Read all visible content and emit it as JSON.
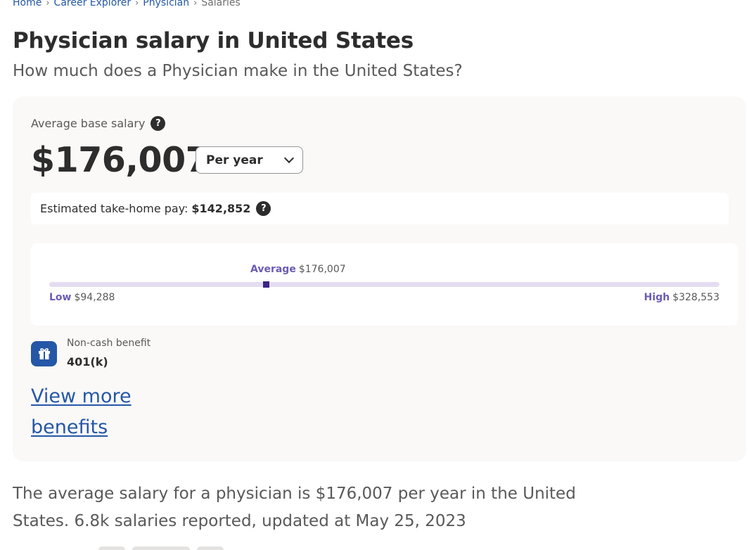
{
  "breadcrumb": {
    "home": "Home",
    "career_explorer": "Career Explorer",
    "physician": "Physician",
    "current": "Salaries",
    "separator": "›"
  },
  "page": {
    "title": "Physician salary in United States",
    "subtitle": "How much does a Physician make in the United States?"
  },
  "salary": {
    "avg_label": "Average base salary",
    "help_glyph": "?",
    "avg_value": "$176,007",
    "period_selected": "Per year",
    "takehome_label": "Estimated take-home pay:",
    "takehome_value": "$142,852"
  },
  "range": {
    "average_label": "Average",
    "average_value": "$176,007",
    "low_label": "Low",
    "low_value": "$94,288",
    "high_label": "High",
    "high_value": "$328,553",
    "colors": {
      "track": "#e4ddf2",
      "marker": "#3b2485",
      "label": "#6c5bb5"
    }
  },
  "benefit": {
    "icon": "gift-icon",
    "label": "Non-cash benefit",
    "value": "401(k)",
    "view_more": "View more benefits"
  },
  "summary": {
    "text": "The average salary for a physician is $176,007 per year in the United States.  6.8k salaries reported, updated at May 25, 2023"
  },
  "colors": {
    "link": "#2557a7",
    "text": "#2d2d2d",
    "muted": "#595959",
    "card_bg": "#faf9f8"
  }
}
